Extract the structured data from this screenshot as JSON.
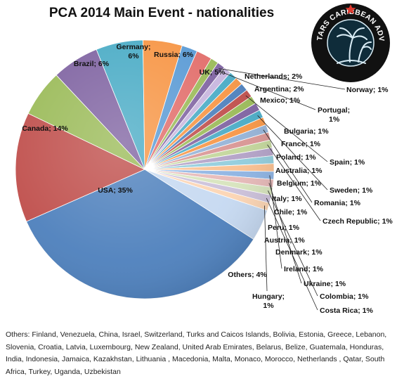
{
  "chart_data": {
    "type": "pie",
    "title": "PCA 2014 Main Event - nationalities",
    "slices": [
      {
        "label": "Russia; 6%",
        "value": 6,
        "color": "#4bacc6"
      },
      {
        "label": "UK; 5%",
        "value": 5,
        "color": "#f79646"
      },
      {
        "label": "Netherlands; 2%",
        "value": 2,
        "color": "#5b9bd5"
      },
      {
        "label": "Argentina; 2%",
        "value": 2,
        "color": "#e26f6c"
      },
      {
        "label": "Mexico; 1%",
        "value": 1,
        "color": "#9bbb59"
      },
      {
        "label": "Norway; 1%",
        "value": 1,
        "color": "#8064a2"
      },
      {
        "label": "Portugal; 1%",
        "value": 1,
        "color": "#c8b6de"
      },
      {
        "label": "Bulgaria; 1%",
        "value": 1,
        "color": "#4bacc6"
      },
      {
        "label": "France; 1%",
        "value": 1,
        "color": "#f79646"
      },
      {
        "label": "Poland; 1%",
        "value": 1,
        "color": "#4f81bd"
      },
      {
        "label": "Spain; 1%",
        "value": 1,
        "color": "#c0504d"
      },
      {
        "label": "Australia; 1%",
        "value": 1,
        "color": "#9bbb59"
      },
      {
        "label": "Belgium; 1%",
        "value": 1,
        "color": "#8064a2"
      },
      {
        "label": "Sweden; 1%",
        "value": 1,
        "color": "#4bacc6"
      },
      {
        "label": "Italy; 1%",
        "value": 1,
        "color": "#f79646"
      },
      {
        "label": "Romania; 1%",
        "value": 1,
        "color": "#95b3d7"
      },
      {
        "label": "Chile; 1%",
        "value": 1,
        "color": "#d99694"
      },
      {
        "label": "Czech Republic; 1%",
        "value": 1,
        "color": "#c3d69b"
      },
      {
        "label": "Peru; 1%",
        "value": 1,
        "color": "#b3a2c7"
      },
      {
        "label": "Austria; 1%",
        "value": 1,
        "color": "#92cddc"
      },
      {
        "label": "Denmark; 1%",
        "value": 1,
        "color": "#fac090"
      },
      {
        "label": "Ireland; 1%",
        "value": 1,
        "color": "#8eb4e3"
      },
      {
        "label": "Ukraine; 1%",
        "value": 1,
        "color": "#e6b9b8"
      },
      {
        "label": "Colombia; 1%",
        "value": 1,
        "color": "#d7e4bd"
      },
      {
        "label": "Costa Rica; 1%",
        "value": 1,
        "color": "#ccc1da"
      },
      {
        "label": "Hungary; 1%",
        "value": 1,
        "color": "#fcd5b4"
      },
      {
        "label": "Others; 4%",
        "value": 4,
        "color": "#c6d9f1"
      },
      {
        "label": "USA; 35%",
        "value": 35,
        "color": "#4f81bd"
      },
      {
        "label": "Canada; 14%",
        "value": 14,
        "color": "#c0504d"
      },
      {
        "label": "Brazil; 6%",
        "value": 6,
        "color": "#9bbb59"
      },
      {
        "label": "Germany; 6%",
        "value": 6,
        "color": "#8064a2"
      }
    ]
  },
  "footnote": "Others: Finland, Venezuela, China, Israel, Switzerland, Turks and Caicos Islands, Bolivia, Estonia, Greece, Lebanon, Slovenia, Croatia, Latvia, Luxembourg, New Zealand, United Arab Emirates, Belarus, Belize, Guatemala, Honduras, India, Indonesia, Jamaica, Kazakhstan, Lithuania , Macedonia, Malta, Monaco, Morocco, Netherlands , Qatar, South Africa, Turkey, Uganda, Uzbekistan",
  "logo": {
    "text": "POKERSTARS CARIBBEAN ADVENTURE",
    "icon": "palm-tree-icon",
    "colors": {
      "ring": "#111111",
      "text": "#ffffff",
      "star": "#e03a2f",
      "palm": "#d9ecf5"
    }
  }
}
